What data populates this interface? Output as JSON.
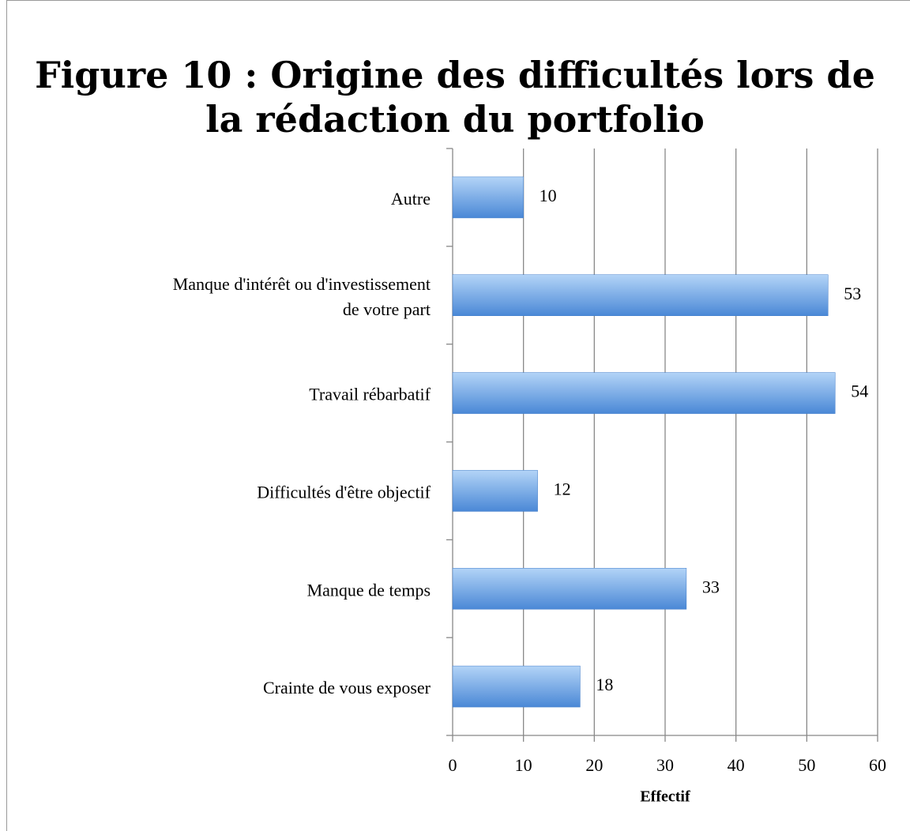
{
  "chart_data": {
    "type": "barh",
    "title": "Figure 10 : Origine des difficultés lors de\nla rédaction du portfolio",
    "categories": [
      "Autre",
      "Manque d'intérêt ou d'investissement\nde votre part",
      "Travail rébarbatif",
      "Difficultés d'être objectif",
      "Manque de temps",
      "Crainte de vous exposer"
    ],
    "values": [
      10,
      53,
      54,
      12,
      33,
      18
    ],
    "xlabel": "Effectif",
    "xlim": [
      0,
      60
    ],
    "xticks": [
      0,
      10,
      20,
      30,
      40,
      50,
      60
    ],
    "grid": true,
    "color": "#5b9ae0"
  }
}
